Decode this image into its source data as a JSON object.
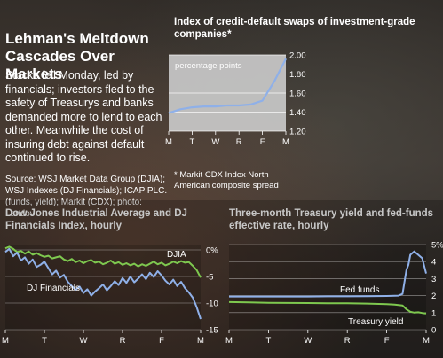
{
  "headline": "Lehman's Meltdown Cascades Over Markets",
  "description": "Stocks fell Monday, led by financials; investors fled to the safety of Treasurys and banks demanded more to lend to each other. Meanwhile the cost of insuring debt against default continued to rise.",
  "source": "Source: WSJ Market Data Group (DJIA); WSJ Indexes (DJ Financials); ICAP PLC. (funds, yield); Markit (CDX); photo: Landov",
  "colors": {
    "blue": "#8fb0e8",
    "green": "#7ec84f",
    "panel": "#c9c9c9",
    "grid": "#ffffff",
    "background": "#2d2926"
  },
  "chart_data": [
    {
      "type": "line",
      "title": "Index of credit-default swaps of investment-grade companies*",
      "unit_label": "percentage points",
      "note": "* Markit CDX Index North American composite spread",
      "x_ticks": [
        "M",
        "T",
        "W",
        "R",
        "F",
        "M"
      ],
      "y_ticks": [
        "2.00",
        "1.80",
        "1.60",
        "1.40",
        "1.20"
      ],
      "ylim": [
        1.2,
        2.0
      ],
      "grid": true,
      "series": [
        {
          "color": "#8fb0e8",
          "x": [
            0,
            0.5,
            1,
            1.5,
            2,
            2.5,
            3,
            3.5,
            4,
            4.5,
            5
          ],
          "values": [
            1.39,
            1.43,
            1.45,
            1.46,
            1.46,
            1.47,
            1.47,
            1.48,
            1.52,
            1.72,
            1.96
          ]
        }
      ]
    },
    {
      "type": "line",
      "title": "Dow Jones Industrial Average and DJ Financials Index, hourly",
      "x_ticks": [
        "M",
        "T",
        "W",
        "R",
        "F",
        "M"
      ],
      "y_ticks": [
        "0%",
        "-5",
        "-10",
        "-15"
      ],
      "ylim": [
        -15,
        1
      ],
      "grid": true,
      "series": [
        {
          "name": "DJIA",
          "color": "#7ec84f",
          "x": [
            0,
            0.1,
            0.2,
            0.3,
            0.4,
            0.5,
            0.6,
            0.7,
            0.8,
            0.9,
            1.0,
            1.1,
            1.2,
            1.3,
            1.4,
            1.5,
            1.6,
            1.7,
            1.8,
            1.9,
            2.0,
            2.1,
            2.2,
            2.3,
            2.4,
            2.5,
            2.6,
            2.7,
            2.8,
            2.9,
            3.0,
            3.1,
            3.2,
            3.3,
            3.4,
            3.5,
            3.6,
            3.7,
            3.8,
            3.9,
            4.0,
            4.1,
            4.2,
            4.3,
            4.4,
            4.5,
            4.6,
            4.7,
            4.8,
            4.9,
            5.0
          ],
          "values": [
            0.3,
            0.6,
            0.2,
            -0.4,
            -0.2,
            -0.7,
            -0.3,
            -0.9,
            -0.6,
            -1.0,
            -1.3,
            -1.1,
            -1.6,
            -1.4,
            -1.2,
            -1.8,
            -2.1,
            -1.7,
            -2.3,
            -2.0,
            -2.5,
            -2.1,
            -1.9,
            -2.4,
            -2.2,
            -2.7,
            -2.4,
            -2.0,
            -2.6,
            -2.3,
            -2.8,
            -2.5,
            -2.9,
            -2.6,
            -3.1,
            -2.7,
            -3.0,
            -2.6,
            -2.2,
            -2.7,
            -2.4,
            -2.9,
            -2.6,
            -2.2,
            -2.5,
            -2.1,
            -2.4,
            -2.3,
            -3.0,
            -3.8,
            -5.2
          ]
        },
        {
          "name": "DJ Financials",
          "color": "#8fb0e8",
          "x": [
            0,
            0.1,
            0.2,
            0.3,
            0.4,
            0.5,
            0.6,
            0.7,
            0.8,
            0.9,
            1.0,
            1.1,
            1.2,
            1.3,
            1.4,
            1.5,
            1.6,
            1.7,
            1.8,
            1.9,
            2.0,
            2.1,
            2.2,
            2.3,
            2.4,
            2.5,
            2.6,
            2.7,
            2.8,
            2.9,
            3.0,
            3.1,
            3.2,
            3.3,
            3.4,
            3.5,
            3.6,
            3.7,
            3.8,
            3.9,
            4.0,
            4.1,
            4.2,
            4.3,
            4.4,
            4.5,
            4.6,
            4.7,
            4.8,
            4.9,
            5.0
          ],
          "values": [
            -0.4,
            0.2,
            -1.2,
            -0.5,
            -2.0,
            -1.4,
            -2.6,
            -1.8,
            -3.2,
            -2.8,
            -2.2,
            -3.4,
            -4.6,
            -3.9,
            -5.2,
            -4.7,
            -6.0,
            -6.8,
            -7.5,
            -6.9,
            -8.1,
            -7.4,
            -8.6,
            -7.8,
            -7.2,
            -6.5,
            -7.6,
            -6.8,
            -5.9,
            -6.6,
            -5.3,
            -6.2,
            -5.0,
            -6.1,
            -5.4,
            -4.6,
            -5.5,
            -4.3,
            -5.1,
            -4.0,
            -4.8,
            -5.8,
            -6.5,
            -5.6,
            -6.8,
            -6.0,
            -7.2,
            -8.0,
            -9.0,
            -10.8,
            -13.0
          ]
        }
      ]
    },
    {
      "type": "line",
      "title": "Three-month Treasury yield and fed-funds effective rate, hourly",
      "x_ticks": [
        "M",
        "T",
        "W",
        "R",
        "F",
        "M"
      ],
      "y_ticks": [
        "5%",
        "4",
        "3",
        "2",
        "1",
        "0"
      ],
      "ylim": [
        0,
        5
      ],
      "grid": true,
      "series": [
        {
          "name": "Fed funds",
          "color": "#8fb0e8",
          "x": [
            0,
            0.5,
            1.0,
            1.5,
            2.0,
            2.5,
            3.0,
            3.5,
            4.0,
            4.3,
            4.4,
            4.5,
            4.55,
            4.6,
            4.7,
            4.8,
            4.9,
            5.0
          ],
          "values": [
            1.95,
            1.95,
            1.95,
            1.95,
            1.95,
            1.96,
            1.96,
            1.97,
            1.98,
            2.0,
            2.1,
            3.5,
            3.8,
            4.4,
            4.6,
            4.4,
            4.2,
            3.3
          ]
        },
        {
          "name": "Treasury yield",
          "color": "#7ec84f",
          "x": [
            0,
            0.5,
            1.0,
            1.5,
            2.0,
            2.5,
            3.0,
            3.5,
            4.0,
            4.2,
            4.4,
            4.5,
            4.6,
            4.7,
            4.8,
            4.9,
            5.0
          ],
          "values": [
            1.62,
            1.6,
            1.58,
            1.57,
            1.56,
            1.55,
            1.55,
            1.53,
            1.5,
            1.47,
            1.42,
            1.2,
            1.05,
            1.0,
            1.02,
            0.98,
            0.95
          ]
        }
      ]
    }
  ]
}
